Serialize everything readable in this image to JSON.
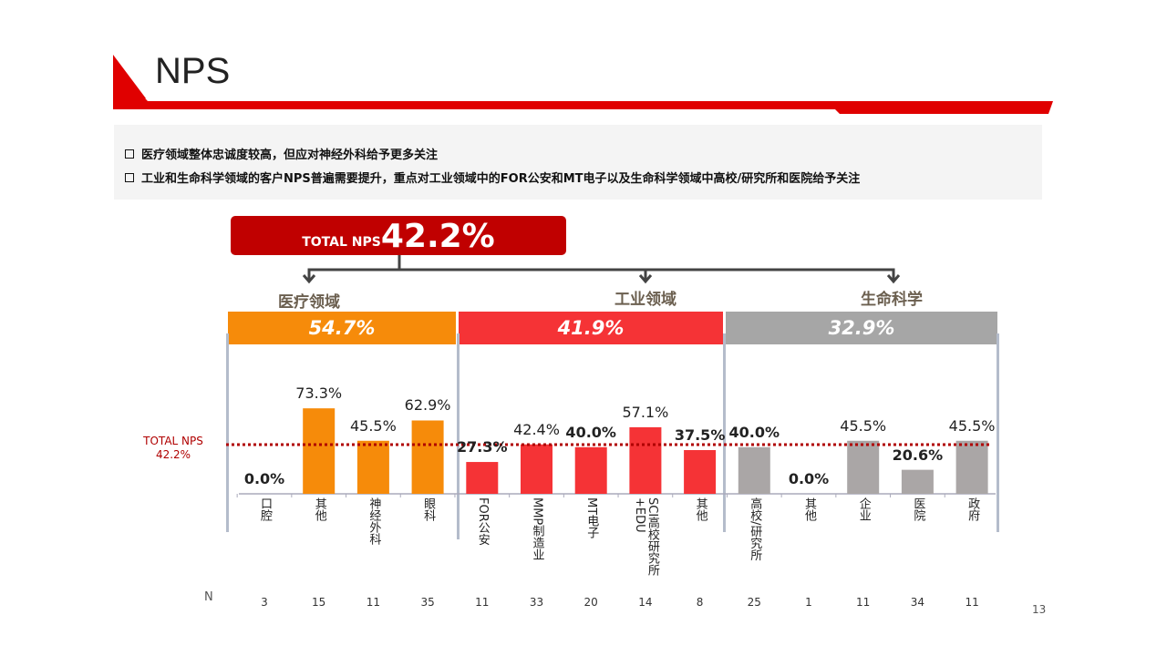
{
  "header": {
    "title": "NPS",
    "page_number": "13"
  },
  "bullets": [
    "医疗领域整体忠诚度较高，但应对神经外科给予更多关注",
    "工业和生命科学领域的客户NPS普遍需要提升，重点对工业领域中的FOR公安和MT电子以及生命科学领域中高校/研究所和医院给予关注"
  ],
  "total": {
    "label": "TOTAL  NPS",
    "value": "42.2%"
  },
  "reference_line": {
    "label": "TOTAL  NPS",
    "value": "42.2%"
  },
  "segments": [
    {
      "name": "医疗领域",
      "nps": "54.7%",
      "color": "#f68b0a"
    },
    {
      "name": "工业领域",
      "nps": "41.9%",
      "color": "#f53336"
    },
    {
      "name": "生命科学",
      "nps": "32.9%",
      "color": "#a6a6a6"
    }
  ],
  "n_label": "N",
  "chart_data": {
    "type": "bar",
    "categories": [
      "口腔",
      "其他",
      "神经外科",
      "眼科",
      "FOR公安",
      "MMP制造业",
      "MT电子",
      "SCI高校研究所+EDU",
      "其他",
      "高校/研究所",
      "其他",
      "企业",
      "医院",
      "政府"
    ],
    "segment_index": [
      0,
      0,
      0,
      0,
      1,
      1,
      1,
      1,
      1,
      2,
      2,
      2,
      2,
      2
    ],
    "values": [
      0.0,
      73.3,
      45.5,
      62.9,
      27.3,
      42.4,
      40.0,
      57.1,
      37.5,
      40.0,
      0.0,
      45.5,
      20.6,
      45.5
    ],
    "labels": [
      "0.0%",
      "73.3%",
      "45.5%",
      "62.9%",
      "27.3%",
      "42.4%",
      "40.0%",
      "57.1%",
      "37.5%",
      "40.0%",
      "0.0%",
      "45.5%",
      "20.6%",
      "45.5%"
    ],
    "n": [
      "3",
      "15",
      "11",
      "35",
      "11",
      "33",
      "20",
      "14",
      "8",
      "25",
      "1",
      "11",
      "34",
      "11"
    ],
    "reference_value": 42.2,
    "colors": {
      "medical": "#f68b0a",
      "industrial": "#f53336",
      "life_science": "#aaa6a6",
      "reference": "#b00000"
    },
    "ylim": [
      0,
      100
    ]
  }
}
